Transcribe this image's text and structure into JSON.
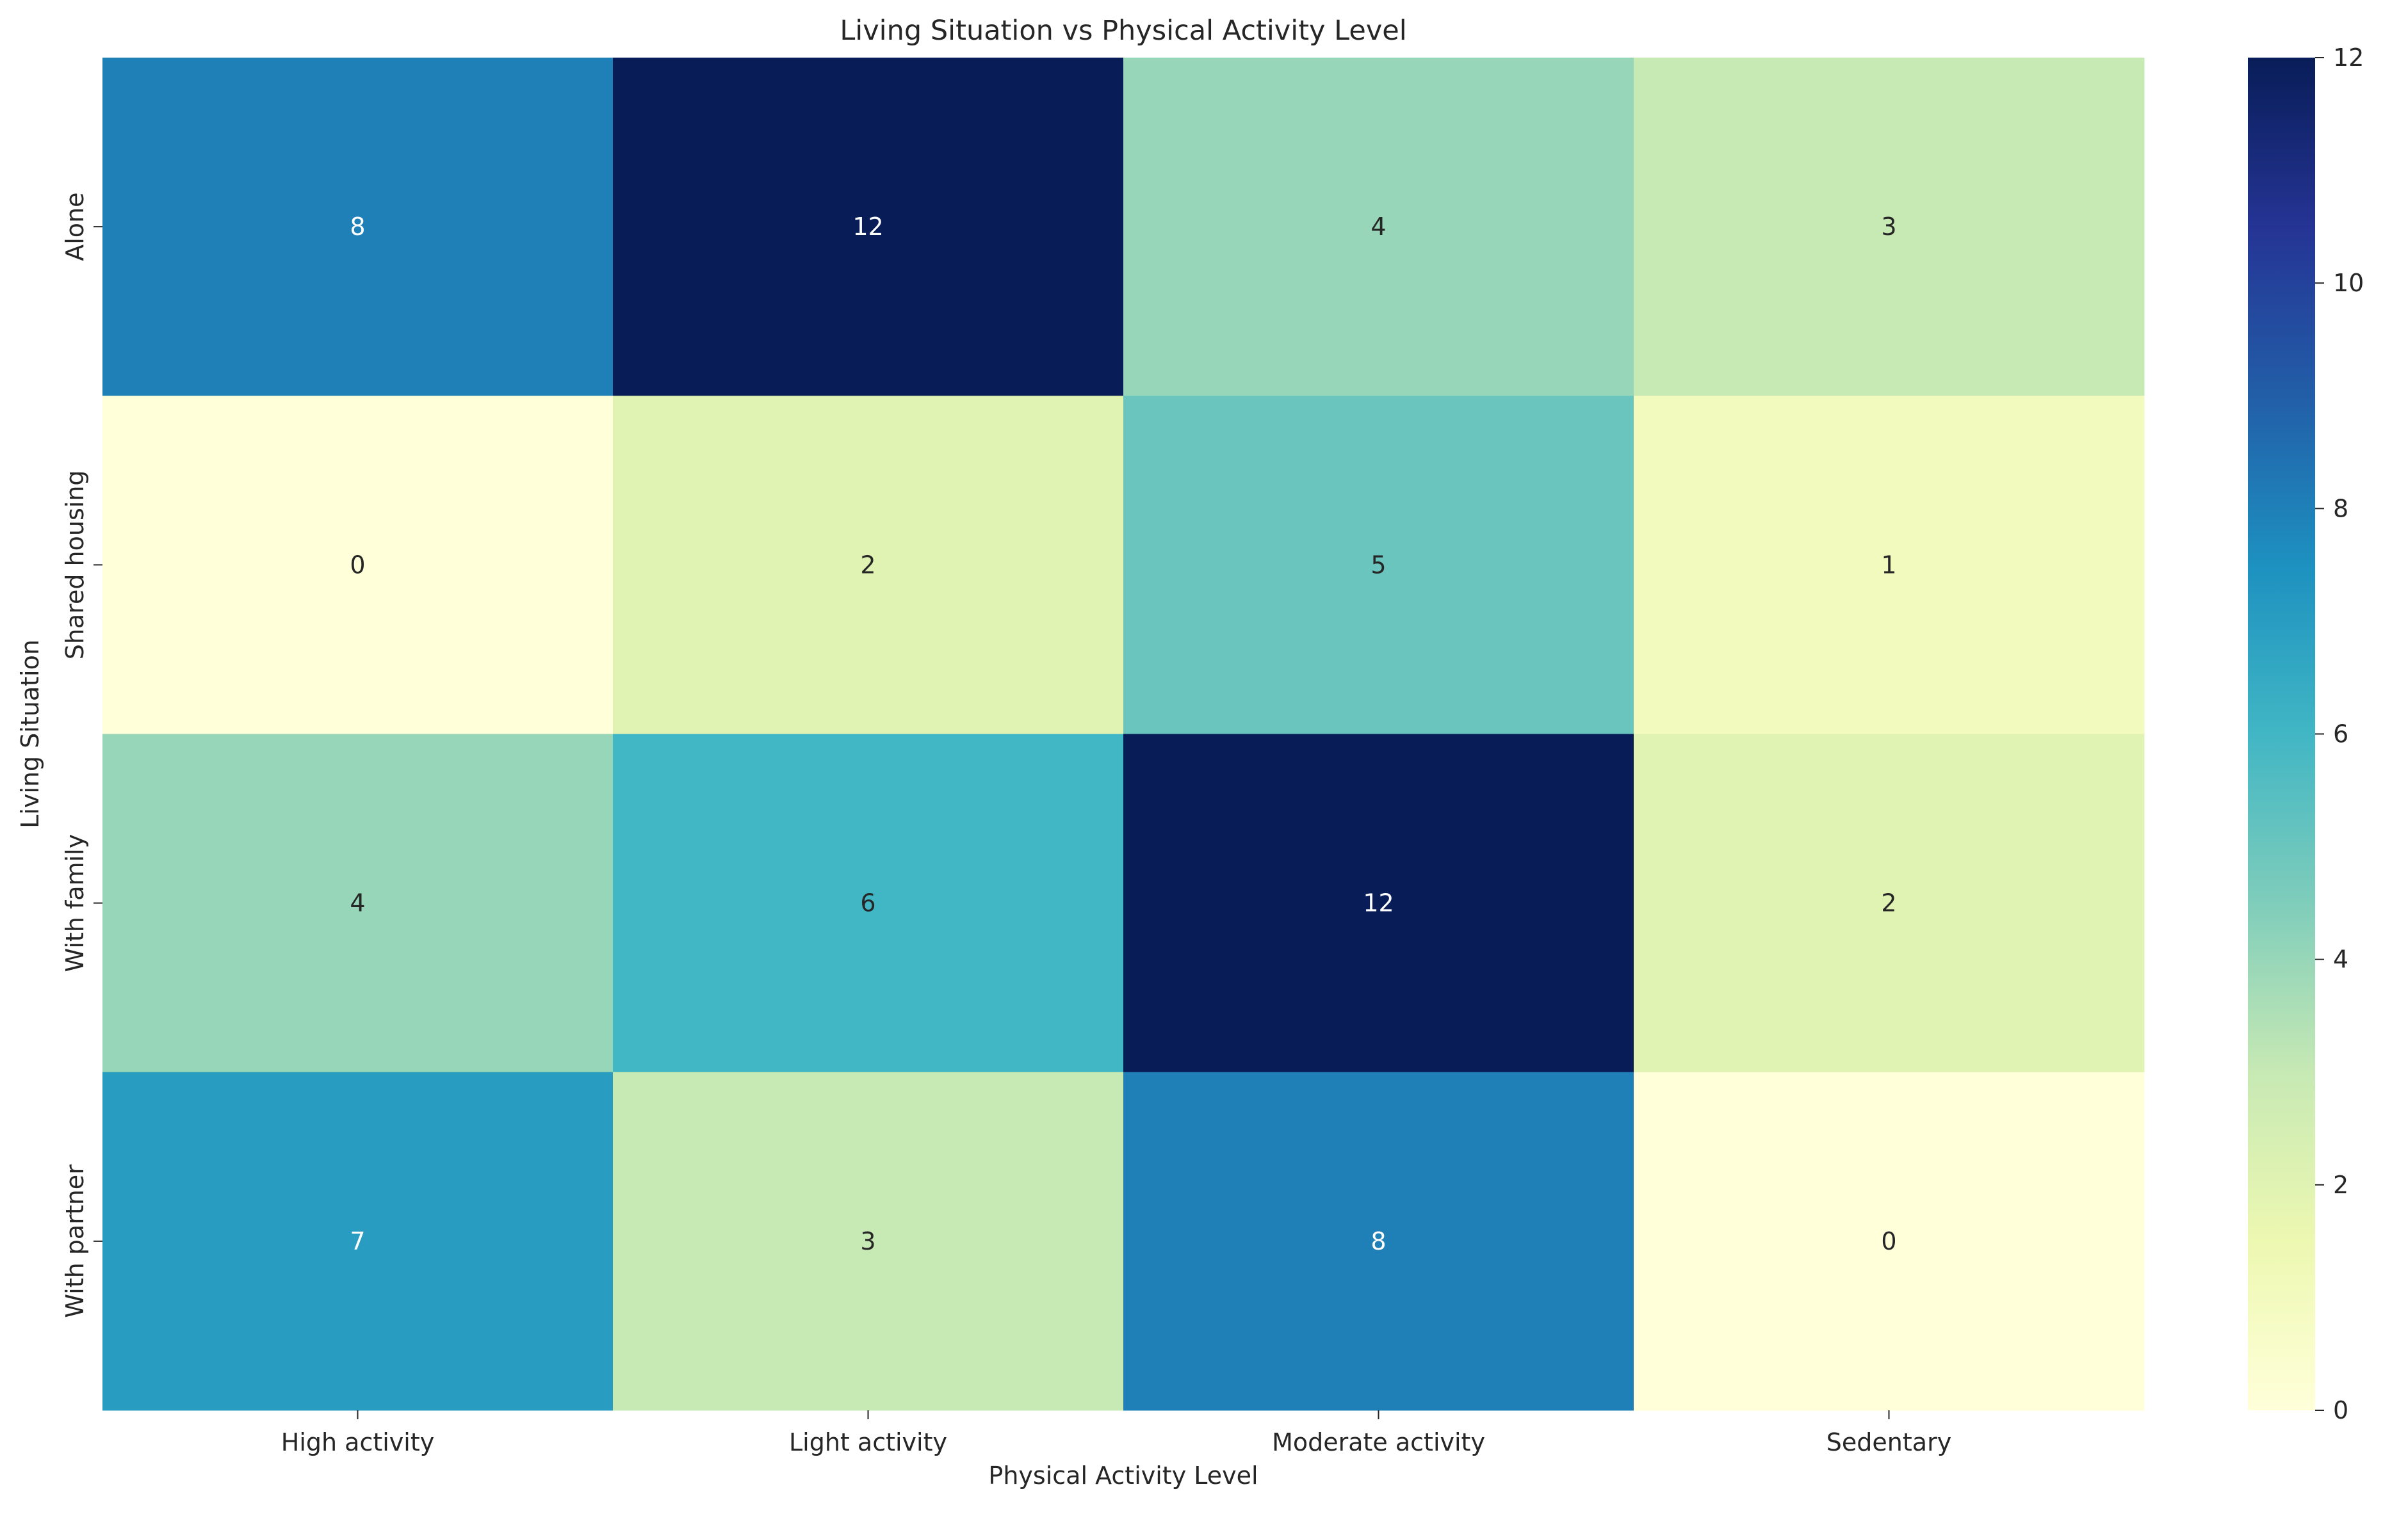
{
  "chart_data": {
    "type": "heatmap",
    "title": "Living Situation vs Physical Activity Level",
    "xlabel": "Physical Activity Level",
    "ylabel": "Living Situation",
    "x_categories": [
      "High activity",
      "Light activity",
      "Moderate activity",
      "Sedentary"
    ],
    "y_categories": [
      "Alone",
      "Shared housing",
      "With family",
      "With partner"
    ],
    "values": [
      [
        8,
        12,
        4,
        3
      ],
      [
        0,
        2,
        5,
        1
      ],
      [
        4,
        6,
        12,
        2
      ],
      [
        7,
        3,
        8,
        0
      ]
    ],
    "colormap": "YlGnBu",
    "colorbar": {
      "min": 0,
      "max": 12,
      "ticks": [
        0,
        2,
        4,
        6,
        8,
        10,
        12
      ]
    },
    "annotations": true,
    "grid": false,
    "legend": "colorbar-right"
  }
}
